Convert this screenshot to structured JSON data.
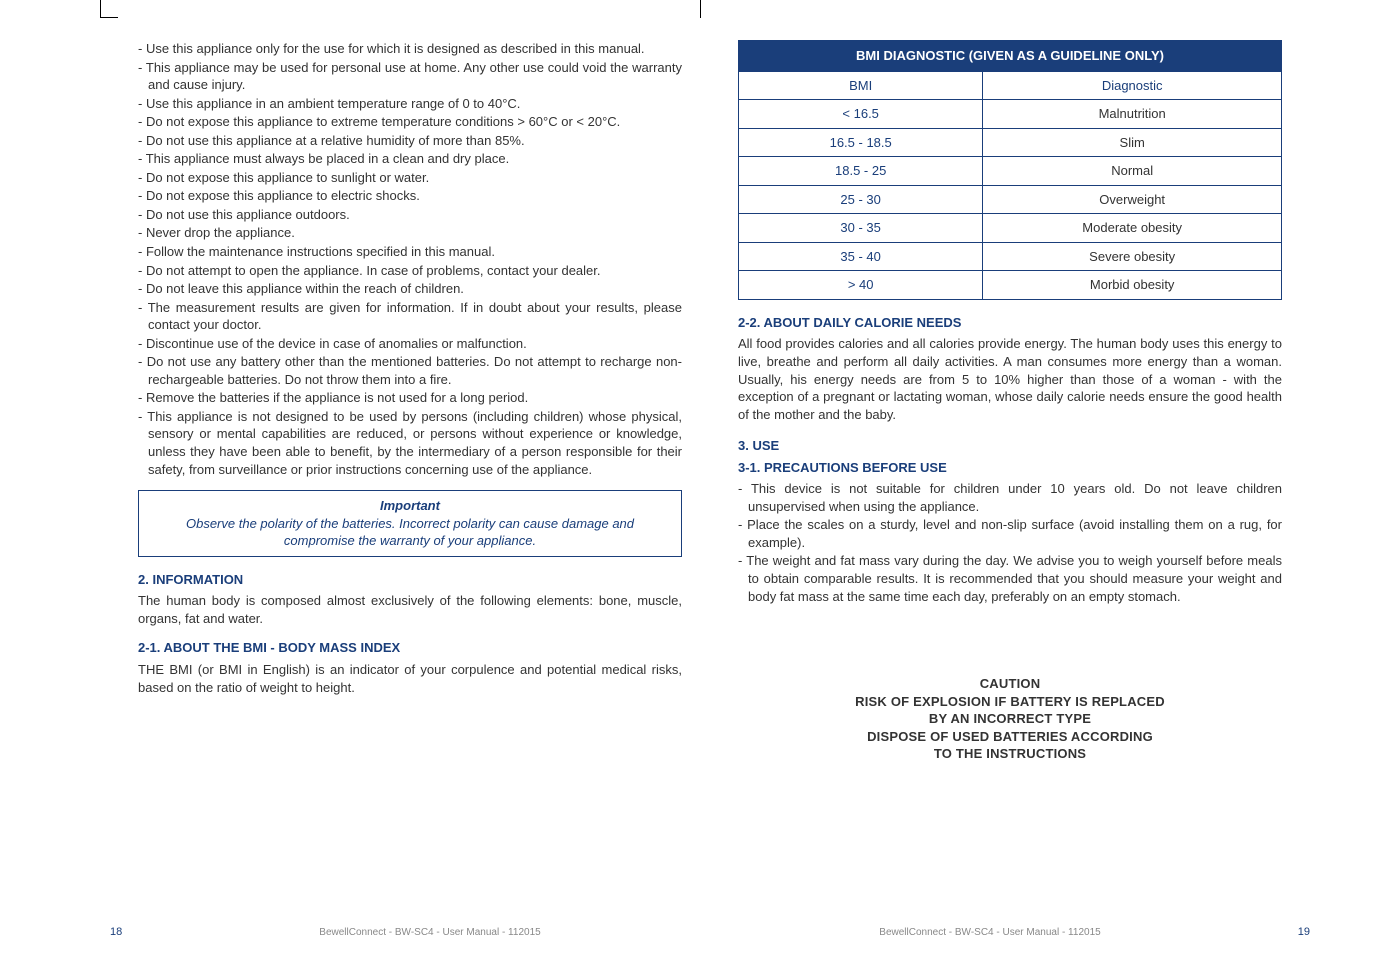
{
  "left_page": {
    "bullets": [
      "Use this appliance only for the use for which it is designed as described in this manual.",
      "This appliance may be used for personal use at home. Any other use could void the warranty and cause injury.",
      "Use this appliance in an ambient temperature range of 0 to 40°C.",
      "Do not expose this appliance to extreme temperature conditions > 60°C or < 20°C.",
      "Do not use this appliance at a relative humidity of more than 85%.",
      "This appliance must always be placed in a clean and dry place.",
      "Do not expose this appliance to sunlight or water.",
      "Do not expose this appliance to electric shocks.",
      "Do not use this appliance outdoors.",
      "Never drop the appliance.",
      "Follow the maintenance instructions specified in this manual.",
      "Do not attempt to open the appliance. In case of problems, contact your dealer.",
      "Do not leave this appliance within the reach of children.",
      "The measurement results are given for information. If in doubt about your results, please contact your doctor.",
      "Discontinue use of the device in case of anomalies or malfunction.",
      "Do not use any battery other than the mentioned batteries. Do not attempt to recharge non-rechargeable batteries. Do not throw them into a fire.",
      "Remove the batteries if the appliance is not used for a long period.",
      "This appliance is not designed to be used by persons (including children) whose physical, sensory or mental capabilities are reduced, or persons without experience or knowledge, unless they have been able to benefit, by the intermediary of a person responsible for their safety, from surveillance or prior instructions concerning use of the appliance."
    ],
    "important": {
      "title": "Important",
      "body": "Observe the polarity of the batteries. Incorrect polarity can cause damage and compromise the warranty of your appliance."
    },
    "sec2_title": "2. INFORMATION",
    "sec2_body": "The human body is composed almost exclusively of the following elements: bone, muscle, organs, fat and water.",
    "sec21_title": "2-1. ABOUT THE BMI - BODY MASS INDEX",
    "sec21_body": "THE BMI (or BMI in English) is an indicator of your corpulence and potential medical risks, based on the ratio of weight to height."
  },
  "right_page": {
    "table": {
      "header": "BMI DIAGNOSTIC  (GIVEN AS A GUIDELINE ONLY)",
      "col1": "BMI",
      "col2": "Diagnostic",
      "rows": [
        {
          "bmi": "< 16.5",
          "diag": "Malnutrition"
        },
        {
          "bmi": "16.5 - 18.5",
          "diag": "Slim"
        },
        {
          "bmi": "18.5 - 25",
          "diag": "Normal"
        },
        {
          "bmi": "25 - 30",
          "diag": "Overweight"
        },
        {
          "bmi": "30 - 35",
          "diag": "Moderate obesity"
        },
        {
          "bmi": "35 - 40",
          "diag": "Severe obesity"
        },
        {
          "bmi": "> 40",
          "diag": "Morbid obesity"
        }
      ]
    },
    "sec22_title": "2-2. ABOUT DAILY CALORIE NEEDS",
    "sec22_body": "All food provides calories and all calories provide energy. The human body uses this energy to live, breathe and perform all daily activities. A man consumes more energy than a woman. Usually, his energy needs are from 5 to 10% higher than those of a woman - with the exception of a pregnant or lactating woman, whose daily calorie needs ensure the good health of the mother and the baby.",
    "sec3_title": "3. USE",
    "sec31_title": "3-1. PRECAUTIONS BEFORE USE",
    "sec31_bullets": [
      "This device is not suitable for children under 10 years old. Do not leave children unsupervised when using the appliance.",
      "Place the scales on a sturdy, level and non-slip surface (avoid installing them on a rug, for example).",
      "The weight and fat mass vary during the day. We advise you to weigh yourself before meals to obtain comparable results. It is recommended that you should measure your weight and body fat mass at the same time each day, preferably on an empty stomach."
    ],
    "caution": {
      "l1": "CAUTION",
      "l2": "RISK OF EXPLOSION IF BATTERY IS REPLACED",
      "l3": "BY AN INCORRECT TYPE",
      "l4": "DISPOSE OF USED BATTERIES ACCORDING",
      "l5": "TO THE INSTRUCTIONS"
    }
  },
  "footer": {
    "text": "BewellConnect - BW-SC4 - User Manual - 112015",
    "left_num": "18",
    "right_num": "19"
  },
  "colors": {
    "brand_blue": "#1a3e7a",
    "text": "#333333",
    "footer_grey": "#888888"
  }
}
